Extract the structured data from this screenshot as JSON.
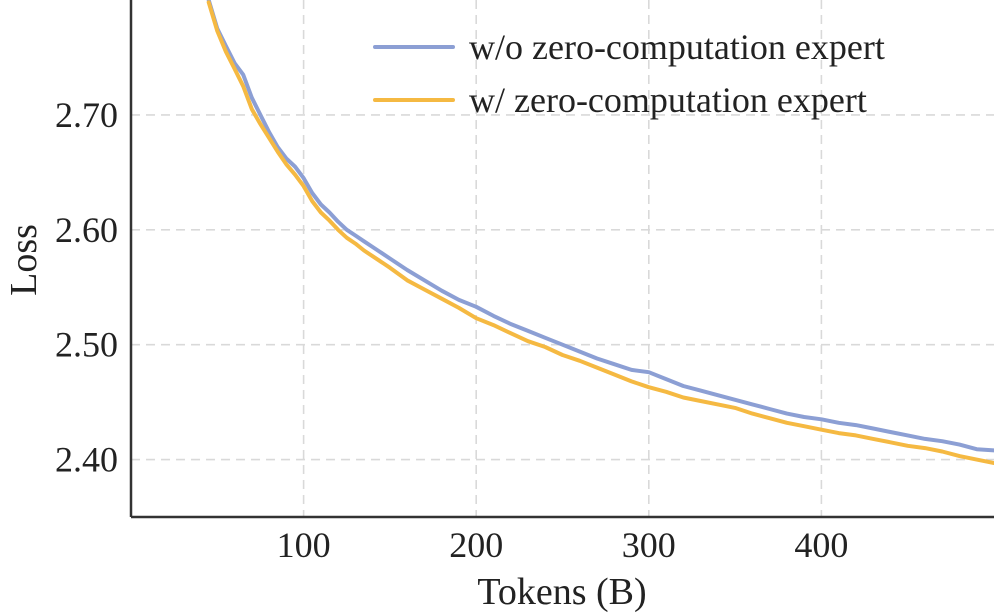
{
  "chart_data": {
    "type": "line",
    "xlabel": "Tokens (B)",
    "ylabel": "Loss",
    "xlim": [
      0,
      500
    ],
    "ylim": [
      2.35,
      2.8
    ],
    "x_ticks": [
      100,
      200,
      300,
      400
    ],
    "x_tick_labels": [
      "100",
      "200",
      "300",
      "400"
    ],
    "y_ticks": [
      2.4,
      2.5,
      2.6,
      2.7
    ],
    "y_tick_labels": [
      "2.40",
      "2.50",
      "2.60",
      "2.70"
    ],
    "grid": true,
    "legend_position": "top-right",
    "series": [
      {
        "name": "w/o zero-computation expert",
        "color": "#8c9fd4",
        "x": [
          45,
          50,
          55,
          60,
          65,
          70,
          75,
          80,
          85,
          90,
          95,
          100,
          105,
          110,
          115,
          120,
          125,
          130,
          135,
          140,
          150,
          160,
          170,
          180,
          190,
          200,
          210,
          220,
          230,
          240,
          250,
          260,
          270,
          280,
          290,
          300,
          310,
          320,
          330,
          340,
          350,
          360,
          370,
          380,
          390,
          400,
          410,
          420,
          430,
          440,
          450,
          460,
          470,
          480,
          490,
          500
        ],
        "y": [
          2.8,
          2.775,
          2.76,
          2.745,
          2.735,
          2.715,
          2.7,
          2.685,
          2.672,
          2.662,
          2.655,
          2.645,
          2.632,
          2.622,
          2.615,
          2.607,
          2.6,
          2.595,
          2.59,
          2.585,
          2.575,
          2.565,
          2.556,
          2.547,
          2.539,
          2.533,
          2.525,
          2.518,
          2.512,
          2.506,
          2.5,
          2.494,
          2.488,
          2.483,
          2.478,
          2.476,
          2.47,
          2.464,
          2.46,
          2.456,
          2.452,
          2.448,
          2.444,
          2.44,
          2.437,
          2.435,
          2.432,
          2.43,
          2.427,
          2.424,
          2.421,
          2.418,
          2.416,
          2.413,
          2.409,
          2.408
        ]
      },
      {
        "name": "w/ zero-computation expert",
        "color": "#f5b942",
        "x": [
          45,
          50,
          55,
          60,
          65,
          70,
          75,
          80,
          85,
          90,
          95,
          100,
          105,
          110,
          115,
          120,
          125,
          130,
          135,
          140,
          150,
          160,
          170,
          180,
          190,
          200,
          210,
          220,
          230,
          240,
          250,
          260,
          270,
          280,
          290,
          300,
          310,
          320,
          330,
          340,
          350,
          360,
          370,
          380,
          390,
          400,
          410,
          420,
          430,
          440,
          450,
          460,
          470,
          480,
          490,
          500
        ],
        "y": [
          2.798,
          2.773,
          2.755,
          2.74,
          2.725,
          2.705,
          2.692,
          2.68,
          2.668,
          2.657,
          2.648,
          2.638,
          2.625,
          2.615,
          2.608,
          2.6,
          2.593,
          2.588,
          2.582,
          2.577,
          2.567,
          2.556,
          2.548,
          2.54,
          2.532,
          2.523,
          2.517,
          2.51,
          2.503,
          2.498,
          2.491,
          2.486,
          2.48,
          2.474,
          2.468,
          2.463,
          2.459,
          2.454,
          2.451,
          2.448,
          2.445,
          2.44,
          2.436,
          2.432,
          2.429,
          2.426,
          2.423,
          2.421,
          2.418,
          2.415,
          2.412,
          2.41,
          2.407,
          2.403,
          2.4,
          2.397
        ]
      }
    ]
  }
}
